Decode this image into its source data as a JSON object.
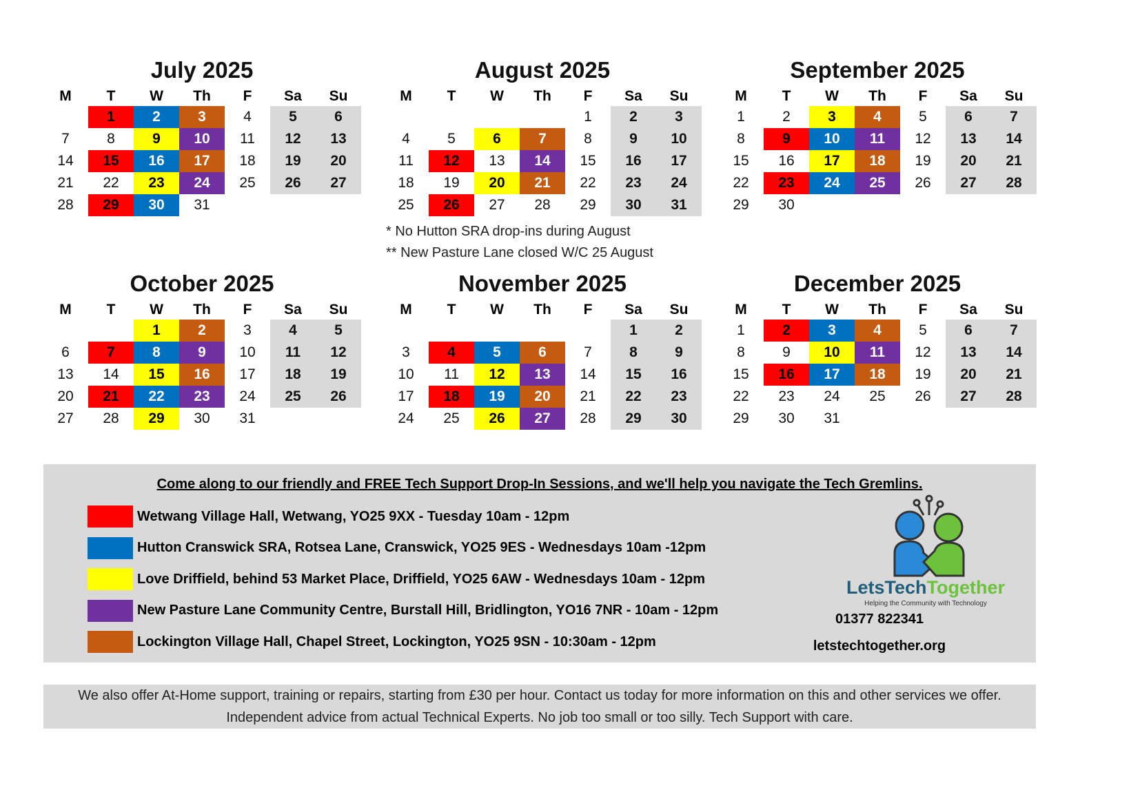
{
  "weekdays": [
    "M",
    "T",
    "W",
    "Th",
    "F",
    "Sa",
    "Su"
  ],
  "colors": {
    "R": "#ff0000",
    "B": "#0070c0",
    "Y": "#ffff00",
    "P": "#7030a0",
    "O": "#c55a11",
    "weekend": "#d9d9d9"
  },
  "months": [
    {
      "title": "July 2025",
      "start": 1,
      "days": 31,
      "highlights": {
        "R": [
          1,
          15,
          29
        ],
        "B": [
          2,
          16,
          30
        ],
        "O": [
          3,
          17
        ],
        "Y": [
          9,
          23
        ],
        "P": [
          10,
          24
        ]
      }
    },
    {
      "title": "August 2025",
      "start": 4,
      "days": 31,
      "highlights": {
        "Y": [
          6,
          20
        ],
        "O": [
          7,
          21
        ],
        "R": [
          12,
          26
        ],
        "P": [
          14
        ]
      }
    },
    {
      "title": "September 2025",
      "start": 0,
      "days": 30,
      "highlights": {
        "Y": [
          3,
          17
        ],
        "O": [
          4,
          18
        ],
        "R": [
          9,
          23
        ],
        "B": [
          10,
          24
        ],
        "P": [
          11,
          25
        ]
      }
    },
    {
      "title": "October 2025",
      "start": 2,
      "days": 31,
      "highlights": {
        "Y": [
          1,
          15,
          29
        ],
        "O": [
          2,
          16
        ],
        "R": [
          7,
          21
        ],
        "B": [
          8,
          22
        ],
        "P": [
          9,
          23
        ]
      }
    },
    {
      "title": "November 2025",
      "start": 5,
      "days": 30,
      "highlights": {
        "R": [
          4,
          18
        ],
        "B": [
          5,
          19
        ],
        "O": [
          6,
          20
        ],
        "Y": [
          12,
          26
        ],
        "P": [
          13,
          27
        ]
      }
    },
    {
      "title": "December 2025",
      "start": 0,
      "days": 31,
      "highlights": {
        "R": [
          2,
          16
        ],
        "B": [
          3,
          17
        ],
        "O": [
          4,
          18
        ],
        "Y": [
          10
        ],
        "P": [
          11
        ]
      }
    }
  ],
  "notes": [
    "* No Hutton SRA drop-ins during August",
    "** New Pasture Lane closed W/C 25 August"
  ],
  "legend": {
    "headline": "Come along to our friendly and FREE Tech Support Drop-In Sessions, and we'll help you navigate the Tech Gremlins.",
    "items": [
      {
        "color": "R",
        "text": "Wetwang Village Hall, Wetwang, YO25 9XX - Tuesday 10am - 12pm"
      },
      {
        "color": "B",
        "text": "Hutton Cranswick SRA, Rotsea Lane, Cranswick, YO25 9ES - Wednesdays 10am -12pm"
      },
      {
        "color": "Y",
        "text": "Love Driffield, behind 53 Market Place, Driffield, YO25 6AW - Wednesdays 10am - 12pm"
      },
      {
        "color": "P",
        "text": "New Pasture Lane Community Centre, Burstall Hill, Bridlington, YO16 7NR - 10am - 12pm"
      },
      {
        "color": "O",
        "text": "Lockington Village Hall, Chapel Street, Lockington, YO25 9SN - 10:30am - 12pm"
      }
    ]
  },
  "logo": {
    "name_part1": "LetsTech",
    "name_part2": "Together",
    "tagline": "Helping the Community with Technology"
  },
  "contact": {
    "phone": "01377 822341",
    "website": "letstechtogether.org"
  },
  "footer": {
    "line1": "We also offer At-Home support, training or repairs, starting from £30 per hour.  Contact us today for more information on this and other services we offer.",
    "line2": "Independent advice from actual Technical Experts.  No job too small or too silly.  Tech Support with care."
  }
}
